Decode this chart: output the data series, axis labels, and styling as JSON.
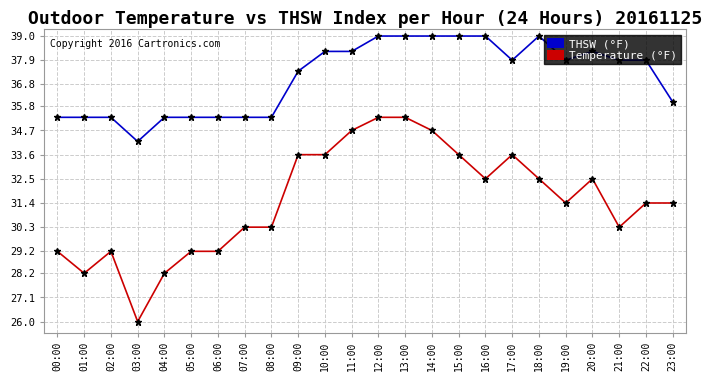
{
  "title": "Outdoor Temperature vs THSW Index per Hour (24 Hours) 20161125",
  "copyright": "Copyright 2016 Cartronics.com",
  "x_labels": [
    "00:00",
    "01:00",
    "02:00",
    "03:00",
    "04:00",
    "05:00",
    "06:00",
    "07:00",
    "08:00",
    "09:00",
    "10:00",
    "11:00",
    "12:00",
    "13:00",
    "14:00",
    "15:00",
    "16:00",
    "17:00",
    "18:00",
    "19:00",
    "20:00",
    "21:00",
    "22:00",
    "23:00"
  ],
  "thsw_values": [
    35.3,
    35.3,
    35.3,
    34.2,
    35.3,
    35.3,
    35.3,
    35.3,
    35.3,
    37.4,
    38.3,
    38.3,
    39.0,
    39.0,
    39.0,
    39.0,
    39.0,
    37.9,
    39.0,
    37.9,
    38.3,
    37.9,
    37.9,
    36.0
  ],
  "temp_values": [
    29.2,
    28.2,
    29.2,
    26.0,
    28.2,
    29.2,
    29.2,
    30.3,
    30.3,
    33.6,
    33.6,
    34.7,
    35.3,
    35.3,
    34.7,
    33.6,
    32.5,
    33.6,
    32.5,
    31.4,
    32.5,
    30.3,
    31.4,
    31.4
  ],
  "thsw_color": "#0000cc",
  "temp_color": "#cc0000",
  "ylim_min": 26.0,
  "ylim_max": 39.0,
  "yticks": [
    26.0,
    27.1,
    28.2,
    29.2,
    30.3,
    31.4,
    32.5,
    33.6,
    34.7,
    35.8,
    36.8,
    37.9,
    39.0
  ],
  "background_color": "#ffffff",
  "grid_color": "#cccccc",
  "title_fontsize": 13,
  "legend_thsw_label": "THSW (°F)",
  "legend_temp_label": "Temperature (°F)"
}
